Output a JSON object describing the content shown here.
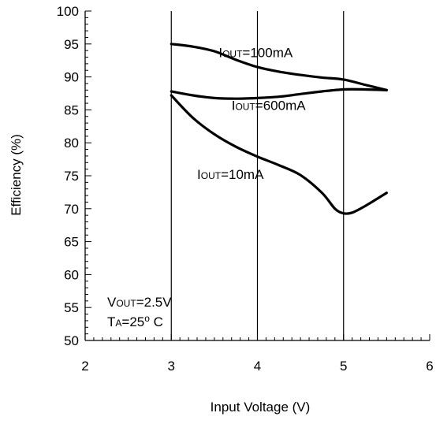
{
  "chart_data": {
    "type": "line",
    "title": "",
    "xlabel": "Input Voltage (V)",
    "ylabel": "Efficiency (%)",
    "xlim": [
      2,
      6
    ],
    "ylim": [
      50,
      100
    ],
    "x_ticks": [
      "2",
      "3",
      "4",
      "5",
      "6"
    ],
    "y_ticks": [
      "50",
      "55",
      "60",
      "65",
      "70",
      "75",
      "80",
      "85",
      "90",
      "95",
      "100"
    ],
    "grid": "vertical",
    "grid_x_values": [
      3,
      4,
      5
    ],
    "series": [
      {
        "key": "iout100",
        "label_main": "I",
        "label_sub": "OUT",
        "label_tail": "=100mA",
        "label_anchor": [
          3.55,
          93.0
        ],
        "x": [
          3.0,
          3.25,
          3.5,
          3.75,
          4.0,
          4.25,
          4.5,
          4.75,
          5.0,
          5.25,
          5.5
        ],
        "y": [
          95.0,
          94.6,
          93.9,
          92.6,
          91.5,
          90.8,
          90.3,
          89.9,
          89.6,
          88.8,
          88.0
        ]
      },
      {
        "key": "iout600",
        "label_main": "I",
        "label_sub": "OUT",
        "label_tail": "=600mA",
        "label_anchor": [
          3.7,
          85.0
        ],
        "x": [
          3.0,
          3.25,
          3.5,
          3.75,
          4.0,
          4.25,
          4.5,
          4.75,
          5.0,
          5.25,
          5.5
        ],
        "y": [
          87.8,
          87.2,
          86.8,
          86.7,
          86.8,
          87.0,
          87.4,
          87.8,
          88.1,
          88.1,
          88.0
        ]
      },
      {
        "key": "iout10",
        "label_main": "I",
        "label_sub": "OUT",
        "label_tail": "=10mA",
        "label_anchor": [
          3.3,
          74.5
        ],
        "x": [
          3.0,
          3.25,
          3.5,
          3.75,
          4.0,
          4.25,
          4.5,
          4.75,
          4.9,
          5.0,
          5.1,
          5.25,
          5.5
        ],
        "y": [
          87.2,
          83.8,
          81.3,
          79.4,
          77.9,
          76.6,
          75.1,
          72.4,
          70.0,
          69.3,
          69.4,
          70.4,
          72.4
        ]
      }
    ],
    "conditions": {
      "line1_main": "V",
      "line1_sub": "OUT",
      "line1_tail": "=2.5V",
      "line2_main": "T",
      "line2_sub": "A",
      "line2_mid": "=25",
      "line2_sup": "o",
      "line2_tail": " C"
    },
    "colors": {
      "curve": "#000000",
      "axis": "#000000",
      "grid": "#000000",
      "background": "#ffffff"
    }
  }
}
